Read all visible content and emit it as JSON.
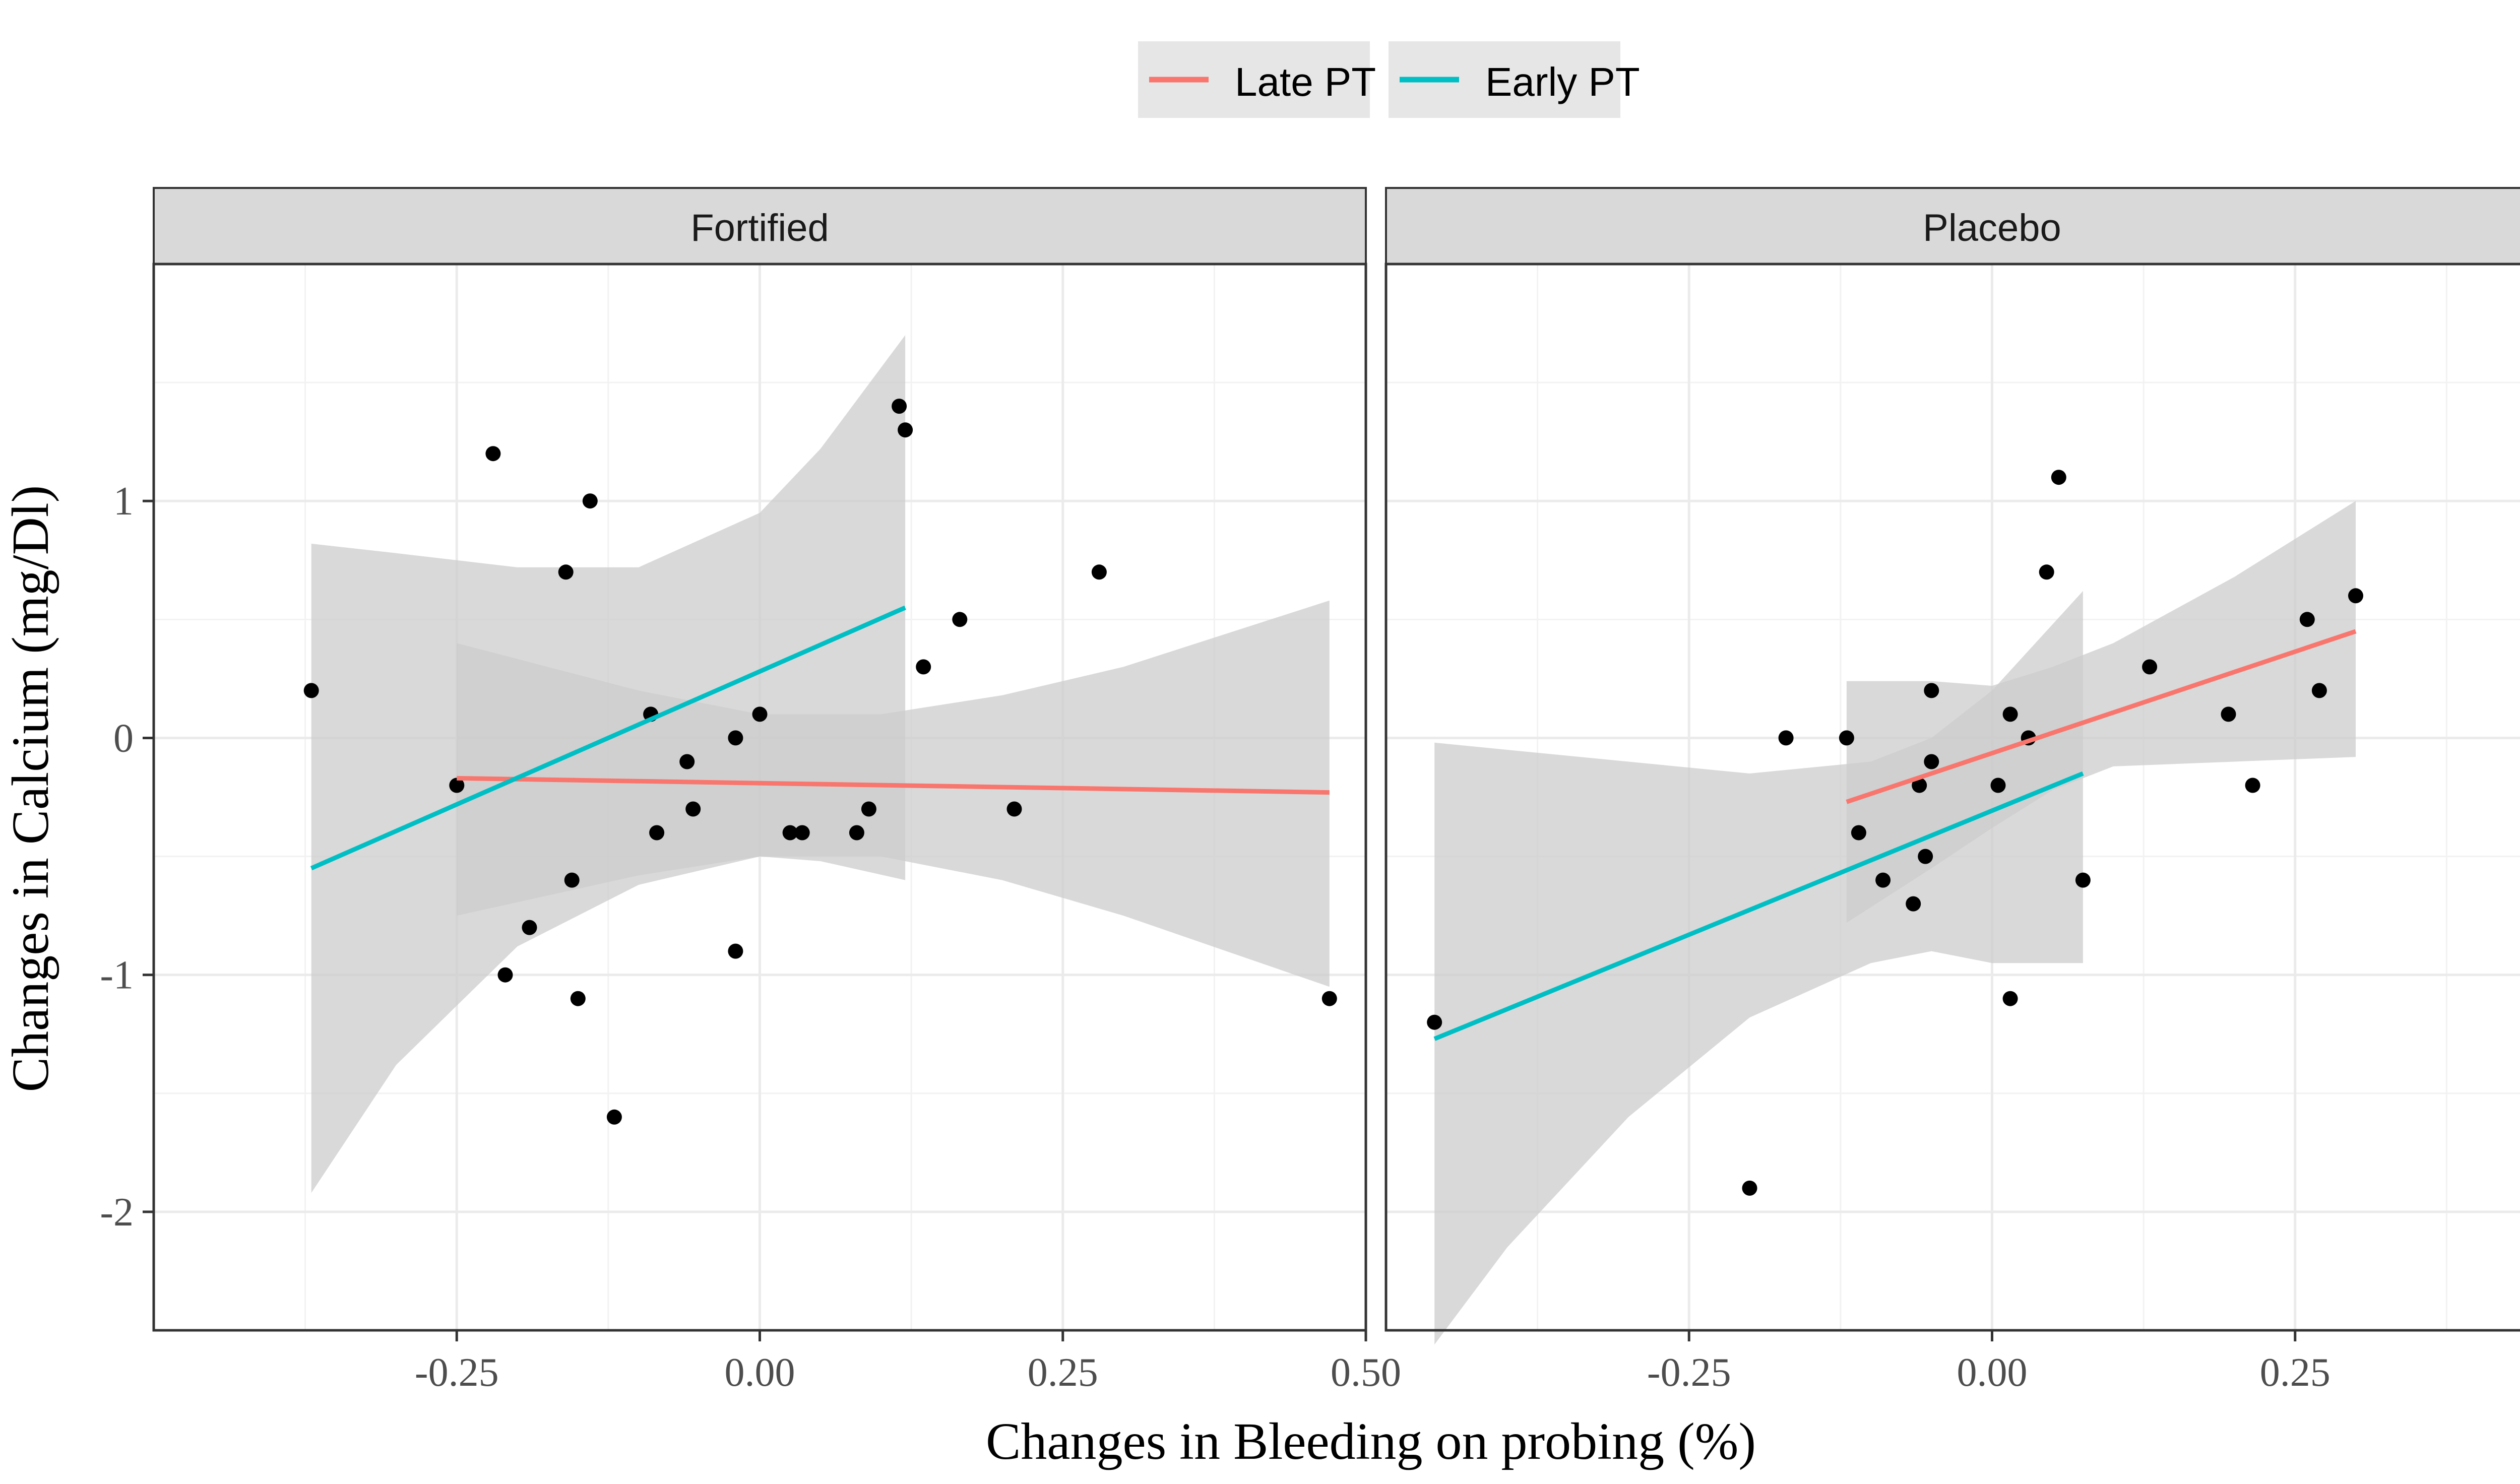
{
  "chart_data": {
    "type": "scatter",
    "ylabel": "Changes in Calcium (mg/Dl)",
    "xlabel": "Changes in Bleeding on probing (%)",
    "xlim": [
      -0.5,
      0.5
    ],
    "ylim": [
      -2.5,
      2.0
    ],
    "x_ticks": [
      -0.25,
      0.0,
      0.25,
      0.5
    ],
    "x_tick_labels": [
      "-0.25",
      "0.00",
      "0.25",
      "0.50"
    ],
    "y_ticks": [
      -2,
      -1,
      0,
      1
    ],
    "y_tick_labels": [
      "-2",
      "-1",
      "0",
      "1"
    ],
    "grid": true,
    "legend": {
      "position": "top",
      "entries": [
        {
          "label": "Late PT",
          "color": "#F8766D"
        },
        {
          "label": "Early PT",
          "color": "#00BFC4"
        }
      ]
    },
    "colors": {
      "late": "#F8766D",
      "early": "#00BFC4",
      "band": "#cccccc",
      "strip": "#d9d9d9",
      "point": "#000000"
    },
    "panels": [
      {
        "title": "Fortified",
        "points": [
          [
            -0.37,
            0.2
          ],
          [
            -0.25,
            -0.2
          ],
          [
            -0.22,
            1.2
          ],
          [
            -0.21,
            -1.0
          ],
          [
            -0.19,
            -0.8
          ],
          [
            -0.16,
            0.7
          ],
          [
            -0.155,
            -0.6
          ],
          [
            -0.15,
            -1.1
          ],
          [
            -0.14,
            1.0
          ],
          [
            -0.12,
            -1.6
          ],
          [
            -0.09,
            0.1
          ],
          [
            -0.085,
            -0.4
          ],
          [
            -0.06,
            -0.1
          ],
          [
            -0.055,
            -0.3
          ],
          [
            -0.02,
            -0.9
          ],
          [
            -0.02,
            0.0
          ],
          [
            0.0,
            0.1
          ],
          [
            0.025,
            -0.4
          ],
          [
            0.035,
            -0.4
          ],
          [
            0.08,
            -0.4
          ],
          [
            0.09,
            -0.3
          ],
          [
            0.115,
            1.4
          ],
          [
            0.12,
            1.3
          ],
          [
            0.135,
            0.3
          ],
          [
            0.165,
            0.5
          ],
          [
            0.21,
            -0.3
          ],
          [
            0.28,
            0.7
          ],
          [
            0.47,
            -1.1
          ]
        ],
        "series": [
          {
            "name": "Late PT",
            "x": [
              -0.25,
              0.47
            ],
            "y": [
              -0.17,
              -0.23
            ],
            "band_x": [
              -0.25,
              -0.1,
              0.0,
              0.1,
              0.2,
              0.3,
              0.47
            ],
            "band_lower": [
              -0.75,
              -0.58,
              -0.5,
              -0.5,
              -0.6,
              -0.75,
              -1.05
            ],
            "band_upper": [
              0.4,
              0.2,
              0.1,
              0.1,
              0.18,
              0.3,
              0.58
            ]
          },
          {
            "name": "Early PT",
            "x": [
              -0.37,
              0.12
            ],
            "y": [
              -0.55,
              0.55
            ],
            "band_x": [
              -0.37,
              -0.3,
              -0.2,
              -0.1,
              0.0,
              0.05,
              0.12
            ],
            "band_lower": [
              -1.92,
              -1.38,
              -0.88,
              -0.62,
              -0.5,
              -0.52,
              -0.6
            ],
            "band_upper": [
              0.82,
              0.78,
              0.72,
              0.72,
              0.95,
              1.22,
              1.7
            ]
          }
        ]
      },
      {
        "title": "Placebo",
        "points": [
          [
            -0.46,
            -1.2
          ],
          [
            -0.2,
            -1.9
          ],
          [
            -0.17,
            0.0
          ],
          [
            -0.12,
            0.0
          ],
          [
            -0.11,
            -0.4
          ],
          [
            -0.09,
            -0.6
          ],
          [
            -0.065,
            -0.7
          ],
          [
            -0.06,
            -0.2
          ],
          [
            -0.055,
            -0.5
          ],
          [
            -0.05,
            0.2
          ],
          [
            -0.05,
            -0.1
          ],
          [
            0.005,
            -0.2
          ],
          [
            0.015,
            0.1
          ],
          [
            0.015,
            -1.1
          ],
          [
            0.03,
            0.0
          ],
          [
            0.045,
            0.7
          ],
          [
            0.055,
            1.1
          ],
          [
            0.075,
            -0.6
          ],
          [
            0.13,
            0.3
          ],
          [
            0.195,
            0.1
          ],
          [
            0.215,
            -0.2
          ],
          [
            0.26,
            0.5
          ],
          [
            0.27,
            0.2
          ],
          [
            0.3,
            0.6
          ]
        ],
        "series": [
          {
            "name": "Late PT",
            "x": [
              -0.12,
              0.3
            ],
            "y": [
              -0.27,
              0.45
            ],
            "band_x": [
              -0.12,
              -0.05,
              0.0,
              0.05,
              0.1,
              0.2,
              0.3
            ],
            "band_lower": [
              -0.78,
              -0.55,
              -0.38,
              -0.22,
              -0.12,
              -0.1,
              -0.08
            ],
            "band_upper": [
              0.24,
              0.24,
              0.22,
              0.3,
              0.4,
              0.68,
              1.0
            ]
          },
          {
            "name": "Early PT",
            "x": [
              -0.46,
              0.075
            ],
            "y": [
              -1.27,
              -0.15
            ],
            "band_x": [
              -0.46,
              -0.4,
              -0.3,
              -0.2,
              -0.1,
              -0.05,
              0.0,
              0.075
            ],
            "band_lower": [
              -2.56,
              -2.15,
              -1.6,
              -1.18,
              -0.95,
              -0.9,
              -0.95,
              -0.95
            ],
            "band_upper": [
              -0.02,
              -0.05,
              -0.1,
              -0.15,
              -0.1,
              0.0,
              0.2,
              0.62
            ]
          }
        ]
      }
    ]
  }
}
